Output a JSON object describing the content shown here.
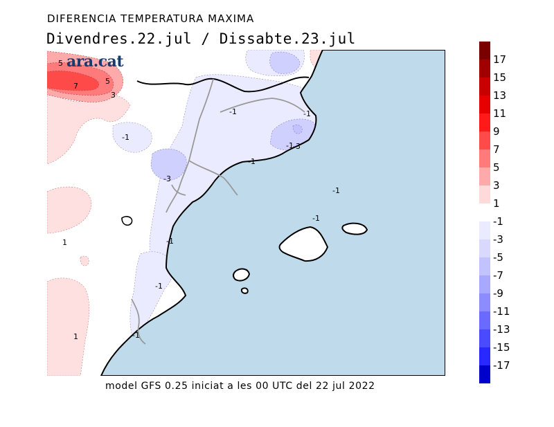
{
  "header": {
    "title": "DIFERENCIA TEMPERATURA MAXIMA",
    "subtitle": "Divendres.22.jul / Dissabte.23.jul"
  },
  "footer": {
    "caption": "model GFS 0.25 iniciat a les 00 UTC del 22 jul 2022"
  },
  "logo": {
    "text": "ara.cat"
  },
  "map": {
    "sea_color": "#bfdbeb",
    "land_color": "#ffffff",
    "contour_labels": [
      "5",
      "7",
      "5",
      "3",
      "-1",
      "-1",
      "-1",
      "-1",
      "-3",
      "-1",
      "-3",
      "-1",
      "-1",
      "1",
      "-1",
      "-1",
      "1",
      "-1"
    ]
  },
  "legend": {
    "warm": [
      {
        "label": "17",
        "color": "#7a0000"
      },
      {
        "label": "15",
        "color": "#a00000"
      },
      {
        "label": "13",
        "color": "#c80000"
      },
      {
        "label": "11",
        "color": "#e60000"
      },
      {
        "label": "9",
        "color": "#ff1a1a"
      },
      {
        "label": "7",
        "color": "#ff4a4a"
      },
      {
        "label": "5",
        "color": "#ff7a7a"
      },
      {
        "label": "3",
        "color": "#ffaaaa"
      },
      {
        "label": "1",
        "color": "#ffdada"
      }
    ],
    "cold": [
      {
        "label": "-1",
        "color": "#ebebff"
      },
      {
        "label": "-3",
        "color": "#d9d9ff"
      },
      {
        "label": "-5",
        "color": "#c2c2ff"
      },
      {
        "label": "-7",
        "color": "#a8a8ff"
      },
      {
        "label": "-9",
        "color": "#8c8cff"
      },
      {
        "label": "-11",
        "color": "#6a6aff"
      },
      {
        "label": "-13",
        "color": "#4a4aff"
      },
      {
        "label": "-15",
        "color": "#2828ff"
      },
      {
        "label": "-17",
        "color": "#0000cc"
      }
    ]
  }
}
